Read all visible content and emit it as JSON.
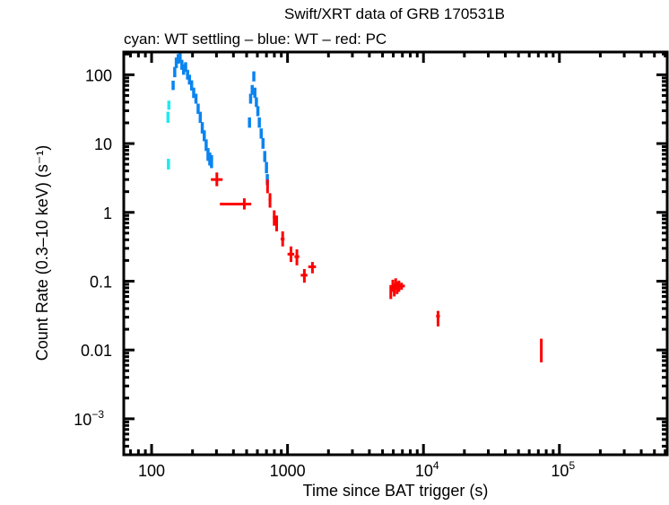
{
  "chart_data": {
    "type": "scatter",
    "title": "Swift/XRT data of GRB 170531B",
    "subtitle": "cyan: WT settling – blue: WT – red: PC",
    "xlabel": "Time since BAT trigger (s)",
    "ylabel": "Count Rate (0.3–10 keV) (s⁻¹)",
    "xscale": "log",
    "yscale": "log",
    "xlim": [
      62.4,
      621000
    ],
    "ylim": [
      0.0003,
      214
    ],
    "grid": false,
    "legend": "none",
    "x_ticks": [
      {
        "value": 100,
        "base": "100",
        "exp": ""
      },
      {
        "value": 1000,
        "base": "1000",
        "exp": ""
      },
      {
        "value": 10000,
        "base": "10",
        "exp": "4"
      },
      {
        "value": 100000,
        "base": "10",
        "exp": "5"
      }
    ],
    "y_ticks": [
      {
        "value": 100,
        "base": "100",
        "exp": ""
      },
      {
        "value": 10,
        "base": "10",
        "exp": ""
      },
      {
        "value": 1,
        "base": "1",
        "exp": ""
      },
      {
        "value": 0.1,
        "base": "0.1",
        "exp": ""
      },
      {
        "value": 0.01,
        "base": "0.01",
        "exp": ""
      },
      {
        "value": 0.001,
        "base": "10",
        "exp": "−3"
      }
    ],
    "point_format": [
      "t",
      "t_low",
      "t_high",
      "rate",
      "rate_low",
      "rate_high"
    ],
    "series": [
      {
        "id": "wt-settling",
        "color": "#22e8f0",
        "points": [
          [
            133,
            131,
            135,
            5.0,
            4.2,
            6.0
          ],
          [
            132,
            130,
            134,
            24,
            20,
            29
          ],
          [
            134,
            132,
            136,
            36,
            31,
            42
          ]
        ]
      },
      {
        "id": "wt",
        "color": "#0a84f0",
        "points": [
          [
            144,
            142,
            146,
            70,
            60,
            82
          ],
          [
            148,
            146,
            150,
            110,
            92,
            130
          ],
          [
            152,
            150,
            154,
            150,
            125,
            178
          ],
          [
            157,
            155,
            159,
            170,
            145,
            200
          ],
          [
            162,
            160,
            164,
            175,
            148,
            205
          ],
          [
            167,
            165,
            169,
            140,
            118,
            165
          ],
          [
            172,
            170,
            174,
            120,
            100,
            142
          ],
          [
            178,
            176,
            180,
            130,
            110,
            152
          ],
          [
            184,
            182,
            186,
            100,
            85,
            118
          ],
          [
            190,
            188,
            192,
            85,
            72,
            100
          ],
          [
            197,
            195,
            199,
            70,
            59,
            83
          ],
          [
            204,
            202,
            206,
            55,
            46,
            65
          ],
          [
            212,
            210,
            214,
            45,
            38,
            53
          ],
          [
            220,
            218,
            222,
            32,
            27,
            38
          ],
          [
            228,
            226,
            230,
            24,
            20,
            29
          ],
          [
            236,
            234,
            238,
            17,
            14,
            20.5
          ],
          [
            244,
            242,
            246,
            13,
            10.8,
            15.6
          ],
          [
            252,
            250,
            254,
            9.5,
            7.8,
            11.5
          ],
          [
            260,
            258,
            262,
            7,
            5.6,
            8.6
          ],
          [
            268,
            266,
            270,
            6,
            4.8,
            7.4
          ],
          [
            276,
            274,
            278,
            5.5,
            4.4,
            6.8
          ],
          [
            525,
            520,
            530,
            20,
            17,
            24
          ],
          [
            535,
            530,
            540,
            45,
            38,
            53
          ],
          [
            550,
            545,
            555,
            60,
            51,
            71
          ],
          [
            565,
            560,
            570,
            95,
            80,
            112
          ],
          [
            575,
            570,
            580,
            55,
            46,
            65
          ],
          [
            590,
            585,
            595,
            40,
            34,
            47
          ],
          [
            605,
            600,
            610,
            30,
            25,
            35
          ],
          [
            620,
            615,
            625,
            20,
            17,
            24
          ],
          [
            640,
            635,
            645,
            14,
            11.8,
            16.6
          ],
          [
            660,
            655,
            665,
            10,
            8.4,
            12
          ],
          [
            680,
            675,
            685,
            6.5,
            5.4,
            7.8
          ],
          [
            700,
            695,
            705,
            4.5,
            3.7,
            5.4
          ],
          [
            710,
            705,
            715,
            3,
            2.5,
            3.6
          ]
        ]
      },
      {
        "id": "pc",
        "color": "#ff0000",
        "points": [
          [
            302,
            273,
            333,
            3.0,
            2.4,
            3.8
          ],
          [
            481,
            318,
            541,
            1.32,
            1.1,
            1.6
          ],
          [
            713,
            705,
            722,
            2.46,
            1.9,
            3.0
          ],
          [
            743,
            725,
            760,
            1.54,
            1.17,
            1.9
          ],
          [
            798,
            780,
            815,
            0.85,
            0.64,
            1.07
          ],
          [
            832,
            815,
            850,
            0.67,
            0.53,
            0.9
          ],
          [
            921,
            890,
            950,
            0.41,
            0.32,
            0.53
          ],
          [
            1060,
            1000,
            1120,
            0.247,
            0.19,
            0.32
          ],
          [
            1172,
            1125,
            1220,
            0.227,
            0.17,
            0.29
          ],
          [
            1330,
            1250,
            1400,
            0.122,
            0.095,
            0.15
          ],
          [
            1525,
            1420,
            1620,
            0.162,
            0.13,
            0.19
          ],
          [
            5750,
            5650,
            5850,
            0.07,
            0.055,
            0.088
          ],
          [
            5950,
            5850,
            6050,
            0.085,
            0.07,
            0.105
          ],
          [
            6100,
            6000,
            6200,
            0.075,
            0.06,
            0.092
          ],
          [
            6250,
            6150,
            6350,
            0.09,
            0.075,
            0.11
          ],
          [
            6400,
            6300,
            6500,
            0.08,
            0.065,
            0.098
          ],
          [
            6600,
            6500,
            6700,
            0.085,
            0.07,
            0.102
          ],
          [
            6900,
            6700,
            7300,
            0.085,
            0.075,
            0.095
          ],
          [
            12800,
            12400,
            13200,
            0.031,
            0.022,
            0.037
          ],
          [
            73600,
            72500,
            74700,
            0.0102,
            0.0066,
            0.0146
          ]
        ]
      }
    ]
  }
}
